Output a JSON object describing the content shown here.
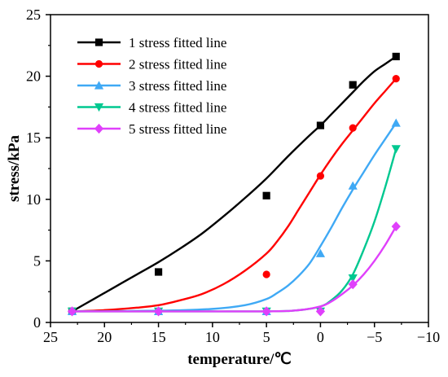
{
  "chart_data": {
    "type": "line",
    "xlabel": "temperature/℃",
    "ylabel": "stress/kPa",
    "xlim": [
      25,
      -10
    ],
    "ylim": [
      0,
      25
    ],
    "xticks": [
      25,
      20,
      15,
      10,
      5,
      0,
      -5,
      -10
    ],
    "yticks": [
      0,
      5,
      10,
      15,
      20,
      25
    ],
    "x_tick_labels": [
      "25",
      "20",
      "15",
      "10",
      "5",
      "0",
      "−5",
      "−10"
    ],
    "y_tick_labels": [
      "0",
      "5",
      "10",
      "15",
      "20",
      "25"
    ],
    "legend_position": "top-left",
    "grid": false,
    "series": [
      {
        "name": "1 stress fitted line",
        "color": "#000000",
        "marker": "square",
        "x": [
          23,
          15,
          5,
          0,
          -3,
          -7
        ],
        "y": [
          0.9,
          4.1,
          10.3,
          16.0,
          19.3,
          21.6
        ],
        "fit_x": [
          23,
          21,
          19,
          17,
          15,
          13,
          11,
          9,
          7,
          5,
          3,
          1,
          0,
          -1,
          -2,
          -3,
          -4,
          -5,
          -6,
          -7
        ],
        "fit_y": [
          0.9,
          1.9,
          2.9,
          3.9,
          4.9,
          6.0,
          7.2,
          8.6,
          10.1,
          11.7,
          13.5,
          15.2,
          16.0,
          16.9,
          17.8,
          18.7,
          19.6,
          20.4,
          21.0,
          21.6
        ]
      },
      {
        "name": "2 stress fitted line",
        "color": "#ff0000",
        "marker": "circle",
        "x": [
          23,
          15,
          5,
          0,
          -3,
          -7
        ],
        "y": [
          0.9,
          0.9,
          3.9,
          11.9,
          15.8,
          19.8
        ],
        "fit_x": [
          23,
          20,
          17,
          15,
          13,
          11,
          9,
          7,
          5,
          4,
          3,
          2,
          1,
          0,
          -1,
          -2,
          -3,
          -4,
          -5,
          -6,
          -7
        ],
        "fit_y": [
          0.9,
          1.0,
          1.2,
          1.4,
          1.8,
          2.3,
          3.1,
          4.2,
          5.6,
          6.6,
          7.8,
          9.2,
          10.6,
          12.0,
          13.3,
          14.5,
          15.6,
          16.7,
          17.8,
          18.8,
          19.8
        ]
      },
      {
        "name": "3 stress fitted line",
        "color": "#3fa9f5",
        "marker": "triangle-up",
        "x": [
          23,
          15,
          5,
          0,
          -3,
          -7
        ],
        "y": [
          0.9,
          0.9,
          0.9,
          5.6,
          11.1,
          16.2
        ],
        "fit_x": [
          23,
          15,
          10,
          7,
          5,
          4,
          3,
          2,
          1,
          0,
          -1,
          -2,
          -3,
          -4,
          -5,
          -6,
          -7
        ],
        "fit_y": [
          0.9,
          0.95,
          1.1,
          1.4,
          1.9,
          2.4,
          3.0,
          3.8,
          4.8,
          6.2,
          7.7,
          9.3,
          10.8,
          12.2,
          13.6,
          14.9,
          16.2
        ]
      },
      {
        "name": "4 stress fitted line",
        "color": "#00c890",
        "marker": "triangle-down",
        "x": [
          23,
          15,
          5,
          0,
          -3,
          -7
        ],
        "y": [
          0.9,
          0.9,
          0.9,
          0.9,
          3.6,
          14.1
        ],
        "fit_x": [
          23,
          15,
          5,
          2,
          0,
          -1,
          -2,
          -3,
          -4,
          -5,
          -6,
          -7
        ],
        "fit_y": [
          0.9,
          0.9,
          0.9,
          1.0,
          1.3,
          1.8,
          2.6,
          3.9,
          5.9,
          8.2,
          11.0,
          14.1
        ]
      },
      {
        "name": "5 stress fitted line",
        "color": "#e040fb",
        "marker": "diamond",
        "x": [
          23,
          15,
          5,
          0,
          -3,
          -7
        ],
        "y": [
          0.9,
          0.9,
          0.9,
          0.9,
          3.1,
          7.8
        ],
        "fit_x": [
          23,
          15,
          5,
          2,
          0,
          -1,
          -2,
          -3,
          -4,
          -5,
          -6,
          -7
        ],
        "fit_y": [
          0.9,
          0.9,
          0.9,
          1.0,
          1.3,
          1.7,
          2.3,
          3.0,
          3.9,
          5.0,
          6.3,
          7.8
        ]
      }
    ]
  }
}
